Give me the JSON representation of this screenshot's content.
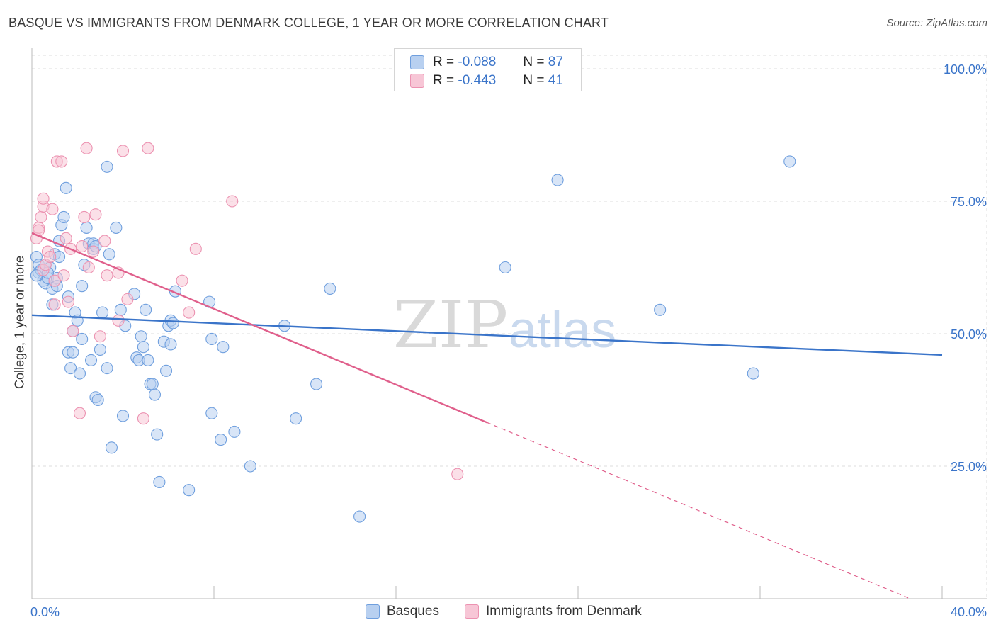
{
  "title": "BASQUE VS IMMIGRANTS FROM DENMARK COLLEGE, 1 YEAR OR MORE CORRELATION CHART",
  "source": "Source: ZipAtlas.com",
  "watermark": {
    "zip": "ZIP",
    "atlas": "atlas"
  },
  "colors": {
    "blue": "#3a74c9",
    "blue_fill": "#b8d0f0",
    "blue_stroke": "#6f9fde",
    "pink": "#e0608c",
    "pink_fill": "#f7c6d6",
    "pink_stroke": "#ec92b1",
    "grid": "#dedede",
    "axis_text": "#3a74c9"
  },
  "legend": {
    "r_label": "R = ",
    "n_label": "N = ",
    "rows": [
      {
        "r": "-0.088",
        "n": "87",
        "series": "basques"
      },
      {
        "r": "-0.443",
        "n": "41",
        "series": "denmark"
      }
    ]
  },
  "bottom_legend": [
    {
      "label": "Basques",
      "series": "basques"
    },
    {
      "label": "Immigrants from Denmark",
      "series": "denmark"
    }
  ],
  "chart_data": {
    "type": "scatter",
    "title": "BASQUE VS IMMIGRANTS FROM DENMARK COLLEGE, 1 YEAR OR MORE CORRELATION CHART",
    "xlabel": "",
    "ylabel": "College, 1 year or more",
    "xlim": [
      0,
      40
    ],
    "ylim": [
      0,
      105
    ],
    "x_tick_labels": [
      "0.0%",
      "40.0%"
    ],
    "y_ticks": [
      25,
      50,
      75,
      100
    ],
    "y_tick_labels": [
      "25.0%",
      "50.0%",
      "75.0%",
      "100.0%"
    ],
    "grid": true,
    "series": [
      {
        "name": "Basques",
        "key": "basques",
        "r": -0.088,
        "n": 87,
        "trend": {
          "x": [
            0,
            40
          ],
          "y": [
            53.5,
            46.0
          ],
          "solid_until": 40
        },
        "points": [
          [
            0.2,
            64.5
          ],
          [
            0.3,
            63
          ],
          [
            0.3,
            61.5
          ],
          [
            0.4,
            62
          ],
          [
            0.5,
            60
          ],
          [
            0.6,
            63
          ],
          [
            0.6,
            59.5
          ],
          [
            0.7,
            60.5
          ],
          [
            0.8,
            62.5
          ],
          [
            0.9,
            58.5
          ],
          [
            0.9,
            55.5
          ],
          [
            1.0,
            65
          ],
          [
            1.1,
            60.5
          ],
          [
            1.2,
            64.5
          ],
          [
            1.2,
            67.5
          ],
          [
            1.3,
            70.5
          ],
          [
            1.4,
            72
          ],
          [
            1.5,
            77.5
          ],
          [
            1.6,
            57
          ],
          [
            1.6,
            46.5
          ],
          [
            1.7,
            43.5
          ],
          [
            1.8,
            46.5
          ],
          [
            1.8,
            50.5
          ],
          [
            1.9,
            54
          ],
          [
            2.0,
            52.5
          ],
          [
            2.1,
            42.5
          ],
          [
            2.2,
            59
          ],
          [
            2.2,
            49
          ],
          [
            2.3,
            63
          ],
          [
            2.4,
            70
          ],
          [
            2.5,
            67
          ],
          [
            2.6,
            45
          ],
          [
            2.7,
            66
          ],
          [
            2.7,
            67
          ],
          [
            2.8,
            38
          ],
          [
            2.9,
            37.5
          ],
          [
            3.0,
            47
          ],
          [
            3.1,
            54
          ],
          [
            3.3,
            81.5
          ],
          [
            3.3,
            43.5
          ],
          [
            3.4,
            65
          ],
          [
            3.5,
            28.5
          ],
          [
            3.7,
            70
          ],
          [
            3.9,
            54.5
          ],
          [
            4.0,
            34.5
          ],
          [
            4.1,
            51.5
          ],
          [
            4.5,
            57.5
          ],
          [
            4.6,
            45.5
          ],
          [
            4.7,
            45
          ],
          [
            4.8,
            49.5
          ],
          [
            4.9,
            47.5
          ],
          [
            5.0,
            54.5
          ],
          [
            5.1,
            45
          ],
          [
            5.2,
            40.5
          ],
          [
            5.3,
            40.5
          ],
          [
            5.4,
            38.5
          ],
          [
            5.5,
            31
          ],
          [
            5.6,
            22
          ],
          [
            5.8,
            48.5
          ],
          [
            5.9,
            43
          ],
          [
            6.0,
            51.5
          ],
          [
            6.1,
            48
          ],
          [
            6.1,
            52.5
          ],
          [
            6.2,
            52
          ],
          [
            6.3,
            58
          ],
          [
            6.9,
            20.5
          ],
          [
            7.8,
            56
          ],
          [
            7.9,
            35
          ],
          [
            7.9,
            49
          ],
          [
            8.3,
            30
          ],
          [
            8.4,
            47.5
          ],
          [
            8.9,
            31.5
          ],
          [
            9.6,
            25
          ],
          [
            11.1,
            51.5
          ],
          [
            11.6,
            34
          ],
          [
            12.5,
            40.5
          ],
          [
            13.1,
            58.5
          ],
          [
            14.4,
            15.5
          ],
          [
            20.8,
            62.5
          ],
          [
            23.1,
            79
          ],
          [
            27.6,
            54.5
          ],
          [
            31.7,
            42.5
          ],
          [
            33.3,
            82.5
          ],
          [
            0.2,
            61
          ],
          [
            0.7,
            61.5
          ],
          [
            1.1,
            59
          ],
          [
            2.8,
            66.5
          ]
        ]
      },
      {
        "name": "Immigrants from Denmark",
        "key": "denmark",
        "r": -0.443,
        "n": 41,
        "trend": {
          "x": [
            0,
            38.6
          ],
          "y": [
            69,
            0
          ],
          "solid_until": 20
        },
        "points": [
          [
            0.2,
            68
          ],
          [
            0.3,
            70
          ],
          [
            0.4,
            72
          ],
          [
            0.5,
            74
          ],
          [
            0.5,
            75.5
          ],
          [
            0.5,
            62
          ],
          [
            0.6,
            63
          ],
          [
            0.7,
            65.5
          ],
          [
            0.8,
            64.5
          ],
          [
            0.9,
            73.5
          ],
          [
            1.0,
            60
          ],
          [
            1.0,
            55.5
          ],
          [
            1.1,
            82.5
          ],
          [
            1.3,
            82.5
          ],
          [
            1.4,
            61
          ],
          [
            1.5,
            68
          ],
          [
            1.6,
            56
          ],
          [
            1.7,
            66
          ],
          [
            1.8,
            50.5
          ],
          [
            2.1,
            35
          ],
          [
            2.2,
            66.5
          ],
          [
            2.3,
            72
          ],
          [
            2.4,
            85
          ],
          [
            2.5,
            62.5
          ],
          [
            2.7,
            65.5
          ],
          [
            2.8,
            72.5
          ],
          [
            3.0,
            49.5
          ],
          [
            3.2,
            67.5
          ],
          [
            3.3,
            61
          ],
          [
            3.8,
            52.5
          ],
          [
            3.8,
            61.5
          ],
          [
            4.0,
            84.5
          ],
          [
            4.2,
            56.5
          ],
          [
            4.9,
            34
          ],
          [
            5.1,
            85
          ],
          [
            6.6,
            60
          ],
          [
            6.9,
            54
          ],
          [
            7.2,
            66
          ],
          [
            8.8,
            75
          ],
          [
            18.7,
            23.5
          ],
          [
            0.3,
            69.5
          ]
        ]
      }
    ]
  }
}
